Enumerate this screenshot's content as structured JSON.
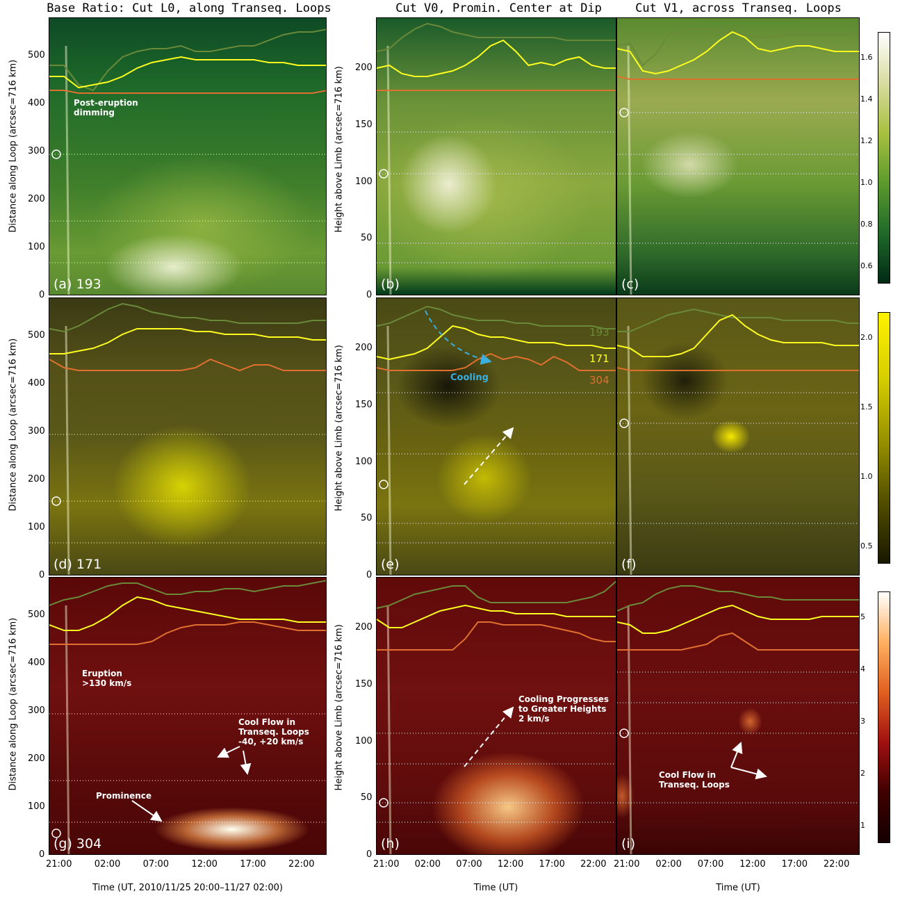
{
  "columns": [
    {
      "title": "Base Ratio: Cut L0, along Transeq. Loops"
    },
    {
      "title": "Cut V0, Promin. Center at Dip"
    },
    {
      "title": "Cut V1, across Transeq. Loops"
    }
  ],
  "ylabels": {
    "col0": "Distance along Loop (arcsec=716 km)",
    "col1": "Height above Limb (arcsec=716 km)"
  },
  "xlabels": {
    "col0": "Time (UT, 2010/11/25 20:00–11/27 02:00)",
    "col1": "Time (UT)",
    "col2": "Time (UT)"
  },
  "xticks": [
    "21:00",
    "02:00",
    "07:00",
    "12:00",
    "17:00",
    "22:00"
  ],
  "yticks_col0": [
    "0",
    "100",
    "200",
    "300",
    "400",
    "500"
  ],
  "yticks_col1": [
    "0",
    "50",
    "100",
    "150",
    "200"
  ],
  "panels": [
    {
      "label": "(a) 193"
    },
    {
      "label": "(b)"
    },
    {
      "label": "(c)"
    },
    {
      "label": "(d) 171"
    },
    {
      "label": "(e)"
    },
    {
      "label": "(f)"
    },
    {
      "label": "(g) 304"
    },
    {
      "label": "(h)"
    },
    {
      "label": "(i)"
    }
  ],
  "annotations": {
    "dimming": "Post-eruption\ndimming",
    "cooling": "Cooling",
    "legend_193": "193",
    "legend_171": "171",
    "legend_304": "304",
    "eruption": "Eruption\n>130 km/s",
    "coolflow_g": "Cool Flow in\nTranseq. Loops\n-40, +20 km/s",
    "prominence": "Prominence",
    "cooling_heights": "Cooling Progresses\nto Greater Heights\n2 km/s",
    "coolflow_i": "Cool Flow in\nTranseq. Loops"
  },
  "colorbars": [
    {
      "ticks": [
        "1.6",
        "1.4",
        "1.2",
        "1.0",
        "0.8",
        "0.6"
      ],
      "colors": [
        "#ffffff",
        "#d8dca0",
        "#a8c040",
        "#5c9a2c",
        "#1f6a2a",
        "#002a14"
      ]
    },
    {
      "ticks": [
        "2.0",
        "1.5",
        "1.0",
        "0.5"
      ],
      "colors": [
        "#fff200",
        "#d8d000",
        "#9a9400",
        "#545000",
        "#181800"
      ]
    },
    {
      "ticks": [
        "5",
        "4",
        "3",
        "2",
        "1"
      ],
      "colors": [
        "#ffffff",
        "#ffb060",
        "#e06020",
        "#a01010",
        "#400000",
        "#150000"
      ]
    }
  ],
  "colors": {
    "curve_193": "#6a8a3a",
    "curve_171": "#ffff20",
    "curve_304": "#e07030",
    "cooling_arrow": "#3ab0e0"
  }
}
